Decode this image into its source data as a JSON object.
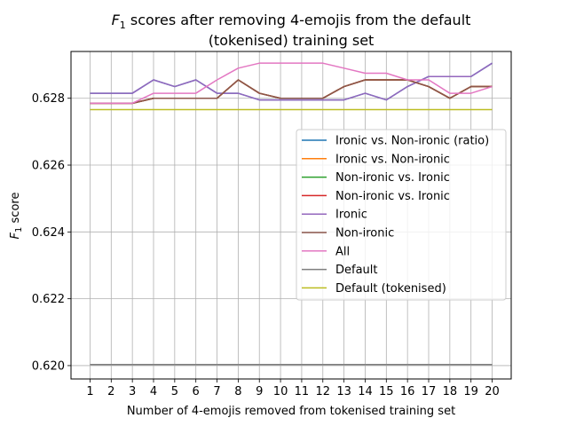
{
  "chart_data": {
    "type": "line",
    "title_prefix": "F",
    "title_sub": "1",
    "title_line1_rest": " scores after removing 4-emojis from the default",
    "title_line2": "(tokenised) training set",
    "xlabel": "Number of 4-emojis removed from tokenised training set",
    "ylabel_prefix": "F",
    "ylabel_sub": "1",
    "ylabel_rest": " score",
    "xlim": [
      0.1,
      20.9
    ],
    "ylim": [
      0.6196,
      0.6294
    ],
    "x": [
      1,
      2,
      3,
      4,
      5,
      6,
      7,
      8,
      9,
      10,
      11,
      12,
      13,
      14,
      15,
      16,
      17,
      18,
      19,
      20
    ],
    "x_tick_labels": [
      "1",
      "2",
      "3",
      "4",
      "5",
      "6",
      "7",
      "8",
      "9",
      "10",
      "11",
      "12",
      "13",
      "14",
      "15",
      "16",
      "17",
      "18",
      "19",
      "20"
    ],
    "y_ticks": [
      0.62,
      0.622,
      0.624,
      0.626,
      0.628
    ],
    "y_tick_labels": [
      "0.620",
      "0.622",
      "0.624",
      "0.626",
      "0.628"
    ],
    "grid": true,
    "legend_position": "right",
    "series": [
      {
        "name": "Ironic vs. Non-ironic (ratio)",
        "color": "#1f77b4",
        "values": [
          0.62815,
          0.62815,
          0.62815,
          0.62855,
          0.62835,
          0.62855,
          0.62815,
          0.62815,
          0.62795,
          0.62795,
          0.62795,
          0.62795,
          0.62795,
          0.62815,
          0.62795,
          0.62835,
          0.62865,
          0.62865,
          0.62865,
          0.62905
        ]
      },
      {
        "name": "Ironic vs. Non-ironic",
        "color": "#ff7f0e",
        "values": [
          0.62785,
          0.62785,
          0.62785,
          0.628,
          0.628,
          0.628,
          0.628,
          0.62855,
          0.62815,
          0.628,
          0.628,
          0.628,
          0.62835,
          0.62855,
          0.62855,
          0.62855,
          0.62835,
          0.628,
          0.62835,
          0.62835
        ]
      },
      {
        "name": "Non-ironic vs. Ironic",
        "color": "#2ca02c",
        "values": [
          0.62785,
          0.62785,
          0.62785,
          0.628,
          0.628,
          0.628,
          0.628,
          0.62855,
          0.62815,
          0.628,
          0.628,
          0.628,
          0.62835,
          0.62855,
          0.62855,
          0.62855,
          0.62835,
          0.628,
          0.62835,
          0.62835
        ]
      },
      {
        "name": "Non-ironic vs. Ironic",
        "color": "#d62728",
        "values": [
          0.62785,
          0.62785,
          0.62785,
          0.628,
          0.628,
          0.628,
          0.628,
          0.62855,
          0.62815,
          0.628,
          0.628,
          0.628,
          0.62835,
          0.62855,
          0.62855,
          0.62855,
          0.62835,
          0.628,
          0.62835,
          0.62835
        ]
      },
      {
        "name": "Ironic",
        "color": "#9467bd",
        "values": [
          0.62815,
          0.62815,
          0.62815,
          0.62855,
          0.62835,
          0.62855,
          0.62815,
          0.62815,
          0.62795,
          0.62795,
          0.62795,
          0.62795,
          0.62795,
          0.62815,
          0.62795,
          0.62835,
          0.62865,
          0.62865,
          0.62865,
          0.62905
        ]
      },
      {
        "name": "Non-ironic",
        "color": "#8c564b",
        "values": [
          0.62785,
          0.62785,
          0.62785,
          0.628,
          0.628,
          0.628,
          0.628,
          0.62855,
          0.62815,
          0.628,
          0.628,
          0.628,
          0.62835,
          0.62855,
          0.62855,
          0.62855,
          0.62835,
          0.628,
          0.62835,
          0.62835
        ]
      },
      {
        "name": "All",
        "color": "#e377c2",
        "values": [
          0.62785,
          0.62785,
          0.62785,
          0.62815,
          0.62815,
          0.62815,
          0.62855,
          0.6289,
          0.62905,
          0.62905,
          0.62905,
          0.62905,
          0.6289,
          0.62875,
          0.62875,
          0.62855,
          0.62855,
          0.62815,
          0.62815,
          0.62835
        ]
      },
      {
        "name": "Default",
        "color": "#7f7f7f",
        "values": [
          0.62003,
          0.62003,
          0.62003,
          0.62003,
          0.62003,
          0.62003,
          0.62003,
          0.62003,
          0.62003,
          0.62003,
          0.62003,
          0.62003,
          0.62003,
          0.62003,
          0.62003,
          0.62003,
          0.62003,
          0.62003,
          0.62003,
          0.62003
        ]
      },
      {
        "name": "Default (tokenised)",
        "color": "#bcbd22",
        "values": [
          0.62766,
          0.62766,
          0.62766,
          0.62766,
          0.62766,
          0.62766,
          0.62766,
          0.62766,
          0.62766,
          0.62766,
          0.62766,
          0.62766,
          0.62766,
          0.62766,
          0.62766,
          0.62766,
          0.62766,
          0.62766,
          0.62766,
          0.62766
        ]
      }
    ]
  }
}
